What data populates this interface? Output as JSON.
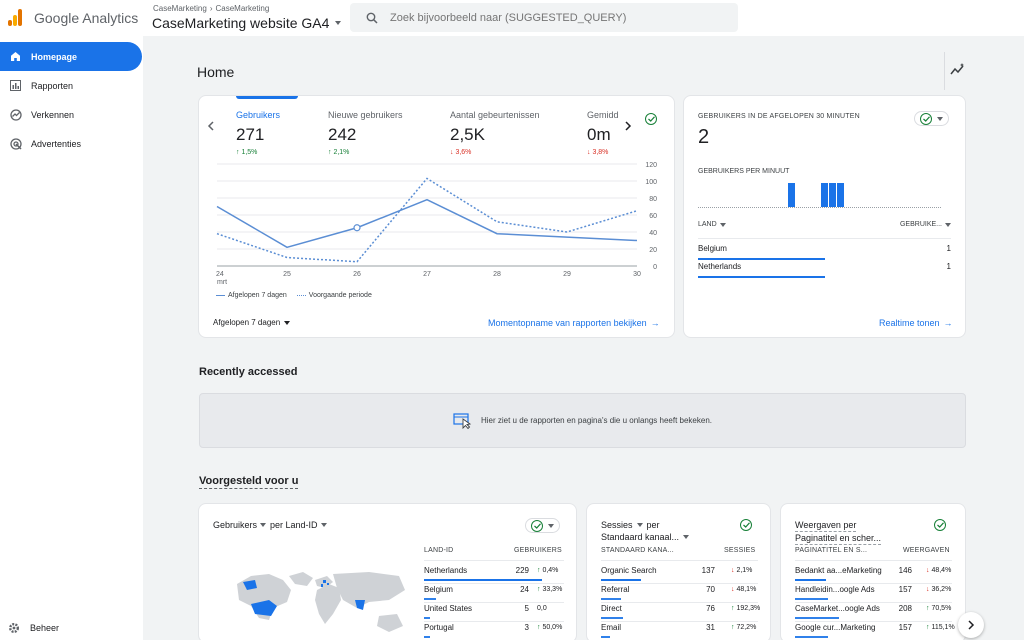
{
  "app": {
    "brand": "Google Analytics"
  },
  "header": {
    "breadcrumb": [
      "CaseMarketing",
      "CaseMarketing"
    ],
    "property": "CaseMarketing website GA4",
    "search_placeholder": "Zoek bijvoorbeeld naar (SUGGESTED_QUERY)"
  },
  "sidebar": {
    "items": [
      {
        "label": "Homepage",
        "icon": "home-icon",
        "active": true
      },
      {
        "label": "Rapporten",
        "icon": "reports-icon"
      },
      {
        "label": "Verkennen",
        "icon": "explore-icon"
      },
      {
        "label": "Advertenties",
        "icon": "advertising-icon"
      }
    ],
    "admin_label": "Beheer"
  },
  "main": {
    "title": "Home",
    "overview": {
      "metrics": [
        {
          "label": "Gebruikers",
          "value": "271",
          "delta": "1,5%",
          "direction": "up"
        },
        {
          "label": "Nieuwe gebruikers",
          "value": "242",
          "delta": "2,1%",
          "direction": "up"
        },
        {
          "label": "Aantal gebeurtenissen",
          "value": "2,5K",
          "delta": "3,6%",
          "direction": "down"
        },
        {
          "label": "Gemidd",
          "value": "0m",
          "delta": "3,8%",
          "direction": "down"
        }
      ],
      "legend_current": "Afgelopen 7 dagen",
      "legend_previous": "Voorgaande periode",
      "period": "Afgelopen 7 dagen",
      "link": "Momentopname van rapporten bekijken"
    },
    "realtime": {
      "title": "GEBRUIKERS IN DE AFGELOPEN 30 MINUTEN",
      "value": "2",
      "sub": "GEBRUIKERS PER MINUUT",
      "per_minute": [
        0,
        0,
        0,
        0,
        0,
        0,
        0,
        0,
        0,
        0,
        0,
        1,
        0,
        0,
        0,
        1,
        1,
        1,
        0,
        0,
        0,
        0,
        0,
        0,
        0,
        0,
        0,
        0,
        0,
        0
      ],
      "col_country": "LAND",
      "col_users": "GEBRUIKE...",
      "rows": [
        {
          "country": "Belgium",
          "users": "1"
        },
        {
          "country": "Netherlands",
          "users": "1"
        }
      ],
      "link": "Realtime tonen"
    },
    "recent": {
      "title": "Recently accessed",
      "empty": "Hier ziet u de rapporten en pagina's die u onlangs heeft bekeken."
    },
    "suggested": {
      "title": "Voorgesteld voor u",
      "card1": {
        "metric": "Gebruikers",
        "dim": "per Land-ID",
        "col1": "LAND-ID",
        "col2": "GEBRUIKERS",
        "rows": [
          {
            "name": "Netherlands",
            "value": "229",
            "delta": "0,4%",
            "direction": "up"
          },
          {
            "name": "Belgium",
            "value": "24",
            "delta": "33,3%",
            "direction": "up"
          },
          {
            "name": "United States",
            "value": "5",
            "delta": "0,0",
            "direction": "none"
          },
          {
            "name": "Portugal",
            "value": "3",
            "delta": "50,0%",
            "direction": "up"
          }
        ]
      },
      "card2": {
        "title_line1": "Sessies",
        "title_per": "per",
        "title_line2": "Standaard kanaal...",
        "col1": "STANDAARD KANA...",
        "col2": "SESSIES",
        "rows": [
          {
            "name": "Organic Search",
            "value": "137",
            "delta": "2,1%",
            "direction": "down"
          },
          {
            "name": "Referral",
            "value": "70",
            "delta": "48,1%",
            "direction": "down"
          },
          {
            "name": "Direct",
            "value": "76",
            "delta": "192,3%",
            "direction": "up"
          },
          {
            "name": "Email",
            "value": "31",
            "delta": "72,2%",
            "direction": "up"
          }
        ]
      },
      "card3": {
        "title_line1": "Weergaven per",
        "title_line2": "Paginatitel en scher...",
        "col1": "PAGINATITEL EN S...",
        "col2": "WEERGAVEN",
        "rows": [
          {
            "name": "Bedankt aa...eMarketing",
            "value": "146",
            "delta": "48,4%",
            "direction": "down"
          },
          {
            "name": "Handleidin...oogle Ads",
            "value": "157",
            "delta": "36,2%",
            "direction": "down"
          },
          {
            "name": "CaseMarket...oogle Ads",
            "value": "208",
            "delta": "70,5%",
            "direction": "up"
          },
          {
            "name": "Google cur...Marketing",
            "value": "157",
            "delta": "115,1%",
            "direction": "up"
          }
        ]
      }
    }
  },
  "chart_data": {
    "type": "line",
    "x": [
      "24",
      "25",
      "26",
      "27",
      "28",
      "29",
      "30"
    ],
    "x_sublabel": "mrt",
    "yticks": [
      0,
      20,
      40,
      60,
      80,
      100,
      120
    ],
    "ylim": [
      0,
      120
    ],
    "series": [
      {
        "name": "Afgelopen 7 dagen",
        "style": "solid",
        "values": [
          70,
          22,
          45,
          78,
          38,
          null,
          30
        ]
      },
      {
        "name": "Voorgaande periode",
        "style": "dotted",
        "values": [
          38,
          10,
          5,
          103,
          52,
          40,
          65
        ]
      }
    ],
    "colors": {
      "primary": "#5b8ed4"
    }
  },
  "colors": {
    "accent": "#1a73e8",
    "up": "#188038",
    "down": "#d93025"
  }
}
